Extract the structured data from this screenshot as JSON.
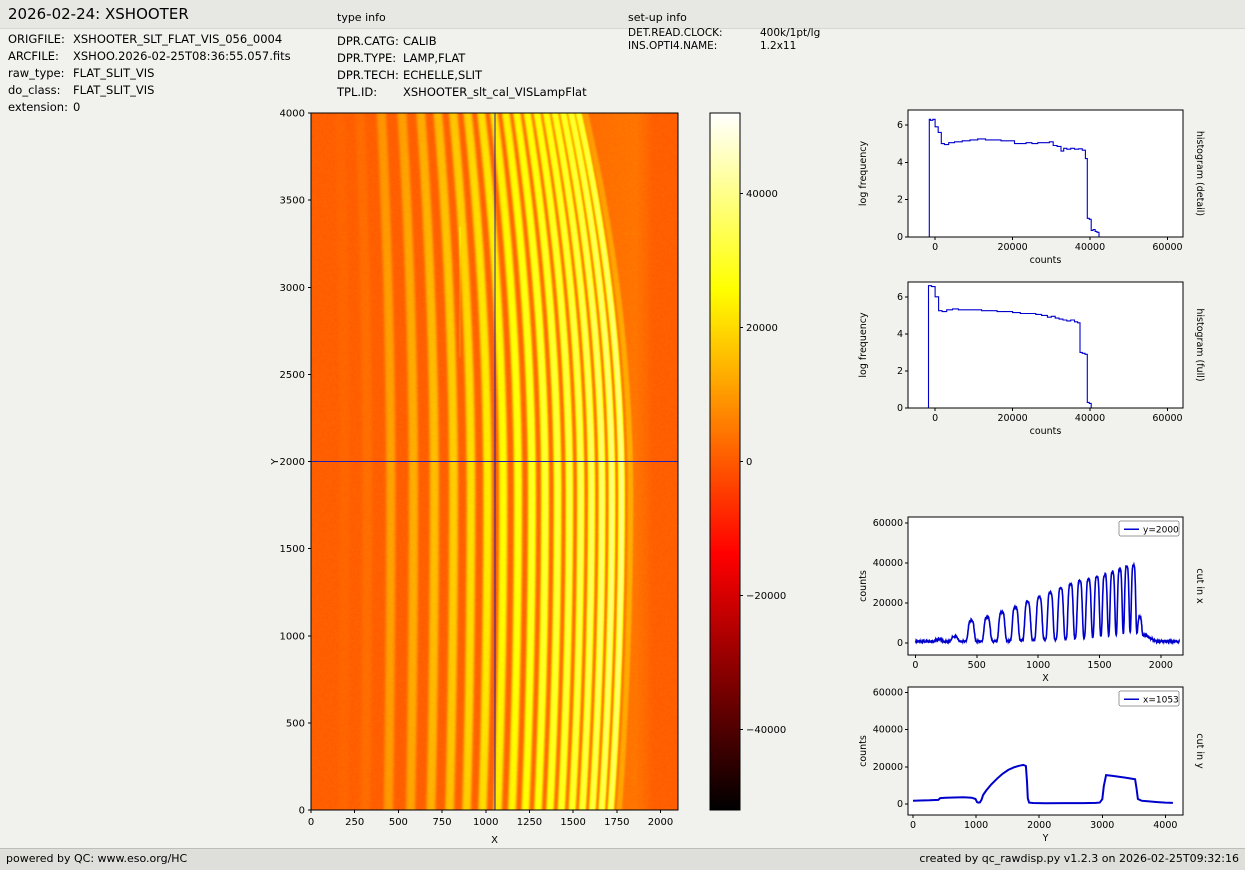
{
  "header": {
    "title": "2026-02-24: XSHOOTER",
    "type_info_label": "type info",
    "setup_info_label": "set-up info"
  },
  "file_info": [
    {
      "label": "ORIGFILE:",
      "value": "XSHOOTER_SLT_FLAT_VIS_056_0004"
    },
    {
      "label": "ARCFILE:",
      "value": "XSHOO.2026-02-25T08:36:55.057.fits"
    },
    {
      "label": "raw_type:",
      "value": "FLAT_SLIT_VIS"
    },
    {
      "label": "do_class:",
      "value": "FLAT_SLIT_VIS"
    },
    {
      "label": "extension:",
      "value": "0"
    }
  ],
  "type_info": [
    {
      "label": "DPR.CATG:",
      "value": "CALIB"
    },
    {
      "label": "DPR.TYPE:",
      "value": "LAMP,FLAT"
    },
    {
      "label": "DPR.TECH:",
      "value": "ECHELLE,SLIT"
    },
    {
      "label": "TPL.ID:",
      "value": "XSHOOTER_slt_cal_VISLampFlat"
    }
  ],
  "setup_info": [
    {
      "label": "DET.READ.CLOCK:",
      "value": "400k/1pt/lg"
    },
    {
      "label": "INS.OPTI4.NAME:",
      "value": "1.2x11"
    }
  ],
  "footer": {
    "left": "powered by QC: www.eso.org/HC",
    "right": "created by qc_rawdisp.py v1.2.3 on 2026-02-25T09:32:16"
  },
  "colors": {
    "line": "#0000cc",
    "crosshair": "#1f1fb4",
    "page_bg": "#f1f1ee"
  },
  "chart_data": [
    {
      "id": "raw_image",
      "type": "heatmap",
      "xlabel": "X",
      "ylabel": "Y",
      "xlim": [
        0,
        2100
      ],
      "ylim": [
        0,
        4000
      ],
      "xticks": [
        0,
        250,
        500,
        750,
        1000,
        1250,
        1500,
        1750,
        2000
      ],
      "yticks": [
        0,
        500,
        1000,
        1500,
        2000,
        2500,
        3000,
        3500,
        4000
      ],
      "crosshair": {
        "x": 1053,
        "y": 2000
      },
      "background_level": 800,
      "scattered_light_max": 5000,
      "orders_format": "[center_x_at_y2000, width, peak_counts, curvature_px]",
      "orders": [
        [
          190,
          50,
          1000,
          30
        ],
        [
          320,
          48,
          2400,
          42
        ],
        [
          455,
          46,
          10200,
          54
        ],
        [
          585,
          46,
          12100,
          66
        ],
        [
          705,
          45,
          14500,
          78
        ],
        [
          815,
          44,
          16900,
          90
        ],
        [
          915,
          43,
          19300,
          102
        ],
        [
          1010,
          42,
          21600,
          114
        ],
        [
          1100,
          41,
          24000,
          126
        ],
        [
          1185,
          40,
          25800,
          138
        ],
        [
          1265,
          39,
          27600,
          150
        ],
        [
          1340,
          38,
          28900,
          162
        ],
        [
          1412,
          37,
          29700,
          174
        ],
        [
          1480,
          36,
          30500,
          186
        ],
        [
          1545,
          35,
          31200,
          198
        ],
        [
          1607,
          34,
          32500,
          210
        ],
        [
          1667,
          33,
          33700,
          222
        ],
        [
          1724,
          32,
          34900,
          234
        ],
        [
          1779,
          31,
          35200,
          246
        ],
        [
          1830,
          28,
          8900,
          258
        ]
      ],
      "defect_column": {
        "x": 852,
        "y0": 2600,
        "y1": 3350,
        "amp": 5000
      },
      "colorbar": {
        "vmin": -52000,
        "vmax": 52000,
        "ticks": [
          40000,
          20000,
          0,
          -20000,
          -40000
        ],
        "colormap": "hot"
      }
    },
    {
      "id": "histogram_detail",
      "type": "line",
      "step": true,
      "right_label": "histogram (detail)",
      "xlabel": "counts",
      "ylabel": "log frequency",
      "xlim": [
        -7000,
        64000
      ],
      "ylim": [
        0,
        6.8
      ],
      "xticks": [
        0,
        20000,
        40000,
        60000
      ],
      "yticks": [
        0,
        2,
        4,
        6
      ],
      "line_width": 1.1,
      "x": [
        -2600,
        -1500,
        -1200,
        -600,
        0,
        800,
        1600,
        2400,
        3500,
        5000,
        7000,
        9000,
        11000,
        13000,
        15000,
        17000,
        19000,
        20500,
        22000,
        23500,
        25000,
        26500,
        28000,
        29500,
        30500,
        31500,
        32500,
        33200,
        34000,
        35000,
        36000,
        37000,
        38000,
        38800,
        39300,
        39800,
        40300,
        40800,
        41300,
        41800,
        42300
      ],
      "y": [
        0,
        6.3,
        6.25,
        6.3,
        5.9,
        5.6,
        5.0,
        4.95,
        5.05,
        5.1,
        5.15,
        5.2,
        5.25,
        5.2,
        5.2,
        5.15,
        5.15,
        5.0,
        5.0,
        5.05,
        5.0,
        5.05,
        5.05,
        5.1,
        4.9,
        4.85,
        4.6,
        4.75,
        4.7,
        4.75,
        4.7,
        4.72,
        4.65,
        4.2,
        1.0,
        0.95,
        0.35,
        0.4,
        0.3,
        0.25,
        0
      ]
    },
    {
      "id": "histogram_full",
      "type": "line",
      "step": true,
      "right_label": "histogram (full)",
      "xlabel": "counts",
      "ylabel": "log frequency",
      "xlim": [
        -7000,
        64000
      ],
      "ylim": [
        0,
        6.8
      ],
      "xticks": [
        0,
        20000,
        40000,
        60000
      ],
      "yticks": [
        0,
        2,
        4,
        6
      ],
      "line_width": 1.1,
      "x": [
        -2600,
        -1700,
        -900,
        0,
        900,
        1800,
        3000,
        4500,
        6000,
        8000,
        10000,
        12000,
        14000,
        16000,
        18000,
        20000,
        22000,
        24000,
        26000,
        27500,
        29000,
        30000,
        31000,
        32000,
        33000,
        34000,
        35000,
        36000,
        36800,
        37400,
        38000,
        38700,
        39300,
        39800,
        40300
      ],
      "y": [
        0,
        6.6,
        6.55,
        6.0,
        5.25,
        5.2,
        5.3,
        5.35,
        5.3,
        5.3,
        5.3,
        5.25,
        5.25,
        5.2,
        5.2,
        5.15,
        5.1,
        5.1,
        5.05,
        5.0,
        4.9,
        4.95,
        4.85,
        4.8,
        4.75,
        4.7,
        4.75,
        4.65,
        4.6,
        3.0,
        2.95,
        2.9,
        0.3,
        0.25,
        0
      ]
    },
    {
      "id": "cut_in_x",
      "type": "line",
      "source": "derived_from_orders_at_y2000",
      "right_label": "cut in x",
      "legend": "y=2000",
      "xlabel": "X",
      "ylabel": "counts",
      "xlim": [
        -60,
        2180
      ],
      "ylim": [
        -6000,
        63000
      ],
      "xticks": [
        0,
        500,
        1000,
        1500,
        2000
      ],
      "yticks": [
        0,
        20000,
        40000,
        60000
      ],
      "line_width": 1.6
    },
    {
      "id": "cut_in_y",
      "type": "line",
      "right_label": "cut in y",
      "legend": "x=1053",
      "xlabel": "Y",
      "ylabel": "counts",
      "xlim": [
        -80,
        4280
      ],
      "ylim": [
        -6000,
        63000
      ],
      "xticks": [
        0,
        1000,
        2000,
        3000,
        4000
      ],
      "yticks": [
        0,
        20000,
        40000,
        60000
      ],
      "line_width": 2,
      "x": [
        0,
        120,
        260,
        400,
        430,
        520,
        650,
        800,
        930,
        990,
        1015,
        1035,
        1060,
        1085,
        1110,
        1160,
        1240,
        1330,
        1420,
        1510,
        1600,
        1680,
        1750,
        1790,
        1806,
        1820,
        1840,
        1900,
        2100,
        2400,
        2700,
        2900,
        2960,
        3000,
        3025,
        3060,
        3150,
        3250,
        3350,
        3450,
        3520,
        3545,
        3565,
        3620,
        3720,
        3850,
        4000,
        4120
      ],
      "y": [
        1700,
        1800,
        1950,
        2150,
        3100,
        3300,
        3450,
        3550,
        3350,
        2600,
        900,
        700,
        800,
        2200,
        4800,
        7200,
        10500,
        13500,
        16200,
        18300,
        19700,
        20500,
        21000,
        20400,
        12000,
        3000,
        700,
        450,
        380,
        400,
        430,
        500,
        700,
        2500,
        9500,
        15500,
        15200,
        14700,
        14200,
        13700,
        13300,
        8000,
        2600,
        1700,
        1400,
        1000,
        700,
        500
      ]
    }
  ]
}
